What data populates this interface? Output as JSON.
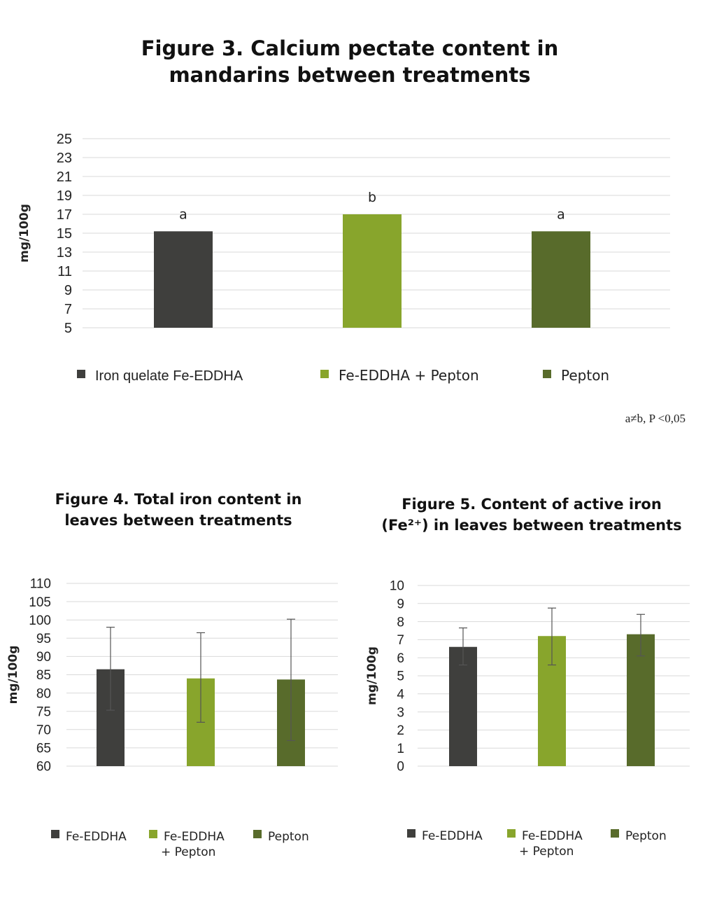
{
  "chart_data": [
    {
      "type": "bar",
      "title": [
        "Figure 3. Calcium pectate content in",
        "mandarins between treatments"
      ],
      "ylabel": "mg/100g",
      "ylim": [
        5,
        25
      ],
      "yticks": [
        5,
        7,
        9,
        11,
        13,
        15,
        17,
        19,
        21,
        23,
        25
      ],
      "grid": true,
      "legend_position": "bottom",
      "series": [
        {
          "name": "Iron quelate Fe-EDDHA",
          "value": 15.2,
          "label": "a",
          "color": "#3f3f3d"
        },
        {
          "name": "Fe-EDDHA + Pepton",
          "value": 17.0,
          "label": "b",
          "color": "#88a52c"
        },
        {
          "name": "Pepton",
          "value": 15.2,
          "label": "a",
          "color": "#586b2b"
        }
      ],
      "annotation": "a≠b, P <0,05"
    },
    {
      "type": "bar",
      "title": [
        "Figure 4. Total iron content in",
        "leaves between treatments"
      ],
      "ylabel": "mg/100g",
      "ylim": [
        60,
        110
      ],
      "yticks": [
        60,
        65,
        70,
        75,
        80,
        85,
        90,
        95,
        100,
        105,
        110
      ],
      "grid": true,
      "legend_position": "bottom",
      "series": [
        {
          "name": [
            "Fe-EDDHA"
          ],
          "value": 86.5,
          "err_low": 75.3,
          "err_high": 98.0,
          "color": "#3f3f3d"
        },
        {
          "name": [
            "Fe-EDDHA",
            "+ Pepton"
          ],
          "value": 84.0,
          "err_low": 72.0,
          "err_high": 96.5,
          "color": "#88a52c"
        },
        {
          "name": [
            "Pepton"
          ],
          "value": 83.7,
          "err_low": 67.0,
          "err_high": 100.2,
          "color": "#586b2b"
        }
      ]
    },
    {
      "type": "bar",
      "title": [
        "Figure 5. Content of active iron",
        "(Fe²⁺) in leaves between treatments"
      ],
      "ylabel": "mg/100g",
      "ylim": [
        0,
        10
      ],
      "yticks": [
        0,
        1,
        2,
        3,
        4,
        5,
        6,
        7,
        8,
        9,
        10
      ],
      "grid": true,
      "legend_position": "bottom",
      "series": [
        {
          "name": [
            "Fe-EDDHA"
          ],
          "value": 6.6,
          "err_low": 5.6,
          "err_high": 7.65,
          "color": "#3f3f3d"
        },
        {
          "name": [
            "Fe-EDDHA",
            "+ Pepton"
          ],
          "value": 7.2,
          "err_low": 5.6,
          "err_high": 8.75,
          "color": "#88a52c"
        },
        {
          "name": [
            "Pepton"
          ],
          "value": 7.3,
          "err_low": 6.1,
          "err_high": 8.4,
          "color": "#586b2b"
        }
      ]
    }
  ]
}
